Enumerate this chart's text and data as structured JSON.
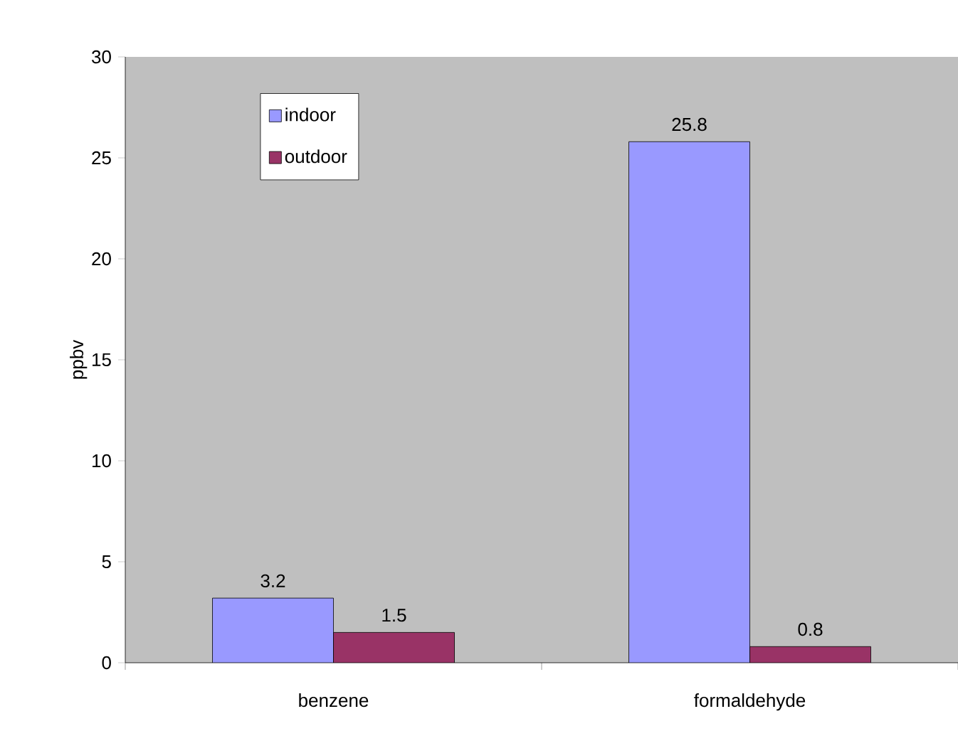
{
  "chart_data": {
    "type": "bar",
    "ylabel": "ppbv",
    "categories": [
      "benzene",
      "formaldehyde"
    ],
    "series": [
      {
        "name": "indoor",
        "color": "#9999ff",
        "values": [
          3.2,
          25.8
        ]
      },
      {
        "name": "outdoor",
        "color": "#993366",
        "values": [
          1.5,
          0.8
        ]
      }
    ],
    "ylim": [
      0,
      30
    ],
    "yticks": [
      0,
      5,
      10,
      15,
      20,
      25,
      30
    ],
    "data_labels": true,
    "grid": false,
    "legend": "top left"
  }
}
